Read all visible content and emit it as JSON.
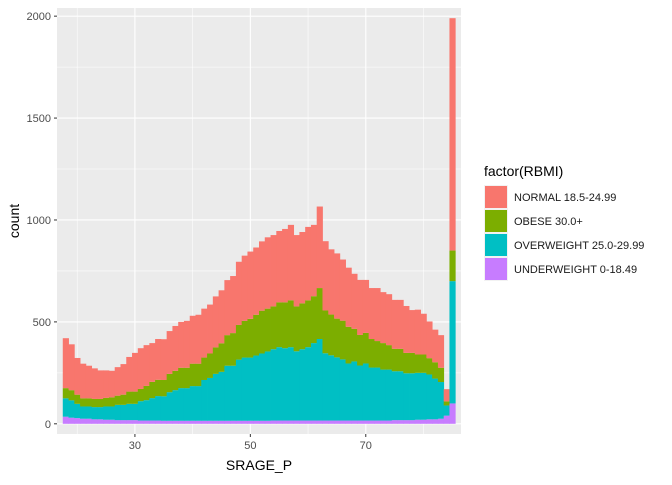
{
  "chart_data": {
    "type": "bar",
    "stacked": true,
    "histogram": true,
    "xlabel": "SRAGE_P",
    "ylabel": "count",
    "xlim": [
      16.5,
      86.5
    ],
    "ylim": [
      -50,
      2040
    ],
    "x_ticks": [
      30,
      50,
      70
    ],
    "y_ticks": [
      0,
      500,
      1000,
      1500,
      2000
    ],
    "grid": true,
    "legend_title": "factor(RBMI)",
    "legend_position": "right",
    "bin_width": 1,
    "x": [
      18,
      19,
      20,
      21,
      22,
      23,
      24,
      25,
      26,
      27,
      28,
      29,
      30,
      31,
      32,
      33,
      34,
      35,
      36,
      37,
      38,
      39,
      40,
      41,
      42,
      43,
      44,
      45,
      46,
      47,
      48,
      49,
      50,
      51,
      52,
      53,
      54,
      55,
      56,
      57,
      58,
      59,
      60,
      61,
      62,
      63,
      64,
      65,
      66,
      67,
      68,
      69,
      70,
      71,
      72,
      73,
      74,
      75,
      76,
      77,
      78,
      79,
      80,
      81,
      82,
      83,
      84,
      85
    ],
    "series": [
      {
        "name": "UNDERWEIGHT 0-18.49",
        "color": "#C77CFF",
        "values": [
          35,
          30,
          28,
          25,
          25,
          22,
          22,
          20,
          20,
          18,
          18,
          18,
          18,
          16,
          16,
          16,
          16,
          15,
          15,
          15,
          15,
          15,
          15,
          15,
          15,
          15,
          15,
          15,
          15,
          15,
          15,
          15,
          15,
          15,
          15,
          15,
          16,
          16,
          16,
          16,
          16,
          16,
          16,
          16,
          16,
          16,
          16,
          16,
          16,
          16,
          16,
          16,
          16,
          16,
          16,
          16,
          16,
          18,
          18,
          18,
          18,
          20,
          20,
          22,
          22,
          25,
          40,
          100
        ]
      },
      {
        "name": "OVERWEIGHT 25.0-29.99",
        "color": "#00BFC4",
        "values": [
          90,
          85,
          70,
          60,
          60,
          60,
          60,
          65,
          65,
          75,
          75,
          80,
          80,
          95,
          100,
          110,
          120,
          120,
          140,
          150,
          160,
          160,
          170,
          170,
          200,
          210,
          230,
          240,
          270,
          270,
          300,
          310,
          310,
          320,
          330,
          340,
          350,
          360,
          355,
          360,
          340,
          350,
          360,
          380,
          400,
          330,
          320,
          310,
          300,
          280,
          290,
          270,
          280,
          260,
          260,
          250,
          250,
          240,
          240,
          230,
          230,
          230,
          230,
          220,
          200,
          180,
          50,
          600
        ]
      },
      {
        "name": "OBESE 30.0+",
        "color": "#7CAE00",
        "values": [
          50,
          50,
          45,
          40,
          40,
          40,
          40,
          42,
          45,
          45,
          50,
          60,
          60,
          60,
          70,
          80,
          80,
          80,
          90,
          95,
          100,
          100,
          110,
          110,
          110,
          120,
          130,
          140,
          150,
          160,
          170,
          180,
          190,
          200,
          210,
          210,
          210,
          220,
          225,
          230,
          220,
          225,
          230,
          230,
          250,
          210,
          200,
          190,
          190,
          180,
          160,
          150,
          150,
          140,
          130,
          130,
          120,
          110,
          110,
          100,
          100,
          90,
          90,
          80,
          80,
          70,
          20,
          150
        ]
      },
      {
        "name": "NORMAL 18.5-24.99",
        "color": "#F8766D",
        "values": [
          245,
          225,
          180,
          170,
          160,
          150,
          140,
          135,
          130,
          140,
          150,
          170,
          190,
          200,
          200,
          190,
          200,
          200,
          210,
          220,
          225,
          230,
          235,
          240,
          240,
          240,
          250,
          260,
          270,
          280,
          310,
          320,
          330,
          330,
          340,
          350,
          350,
          350,
          360,
          370,
          350,
          350,
          360,
          350,
          400,
          340,
          320,
          320,
          300,
          290,
          270,
          270,
          260,
          250,
          260,
          250,
          250,
          240,
          240,
          230,
          210,
          220,
          200,
          180,
          160,
          160,
          60,
          1140
        ]
      }
    ]
  }
}
